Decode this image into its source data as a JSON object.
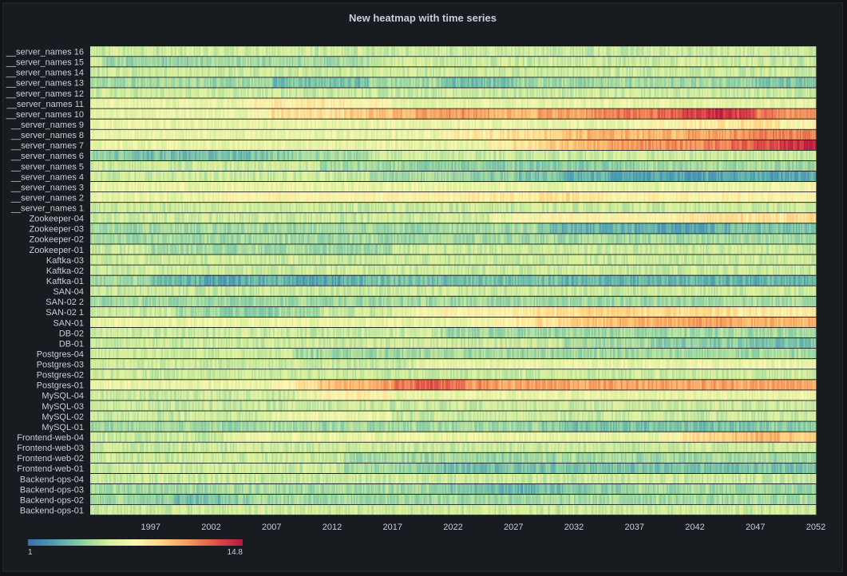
{
  "panel": {
    "title": "New heatmap with time series"
  },
  "chart_data": {
    "type": "heatmap",
    "title": "New heatmap with time series",
    "rows": [
      "__server_names 16",
      "__server_names 15",
      "__server_names 14",
      "__server_names 13",
      "__server_names 12",
      "__server_names 11",
      "__server_names 10",
      "__server_names 9",
      "__server_names 8",
      "__server_names 7",
      "__server_names 6",
      "__server_names 5",
      "__server_names 4",
      "__server_names 3",
      "__server_names 2",
      "__server_names 1",
      "Zookeeper-04",
      "Zookeeper-03",
      "Zookeeper-02",
      "Zookeeper-01",
      "Kaftka-03",
      "Kaftka-02",
      "Kaftka-01",
      "SAN-04",
      "SAN-02 2",
      "SAN-02 1",
      "SAN-01",
      "DB-02",
      "DB-01",
      "Postgres-04",
      "Postgres-03",
      "Postgres-02",
      "Postgres-01",
      "MySQL-04",
      "MySQL-03",
      "MySQL-02",
      "MySQL-01",
      "Frontend-web-04",
      "Frontend-web-03",
      "Frontend-web-02",
      "Frontend-web-01",
      "Backend-ops-04",
      "Backend-ops-03",
      "Backend-ops-02",
      "Backend-ops-01"
    ],
    "x_ticks": [
      "1997",
      "2002",
      "2007",
      "2012",
      "2017",
      "2022",
      "2027",
      "2032",
      "2037",
      "2042",
      "2047",
      "2052"
    ],
    "x_tick_values": [
      1997,
      2002,
      2007,
      2012,
      2017,
      2022,
      2027,
      2032,
      2037,
      2042,
      2047,
      2052
    ],
    "xlim": [
      1992,
      2052
    ],
    "column_years": [
      1992,
      1994,
      1996,
      1998,
      2000,
      2002,
      2004,
      2006,
      2008,
      2010,
      2012,
      2014,
      2016,
      2018,
      2020,
      2022,
      2024,
      2026,
      2028,
      2030,
      2032,
      2034,
      2036,
      2038,
      2040,
      2042,
      2044,
      2046,
      2048,
      2050,
      2052
    ],
    "color_scale": {
      "name": "Spectral",
      "min": 1,
      "max": 14.8,
      "min_label": "1",
      "max_label": "14.8",
      "stops": [
        "#3d6eae",
        "#4f9fb2",
        "#8ccfa4",
        "#d5ee9b",
        "#fbf7b3",
        "#fed283",
        "#f59a5c",
        "#de5147",
        "#b81840"
      ]
    },
    "values": [
      [
        6,
        6,
        6,
        6,
        6,
        6,
        6,
        6,
        6,
        6,
        6,
        6,
        6,
        6,
        6,
        6,
        6,
        6,
        6,
        6,
        6,
        6,
        6,
        6,
        6,
        6,
        6,
        6,
        6,
        6,
        6
      ],
      [
        6,
        5,
        4.5,
        4.5,
        4.5,
        5,
        5,
        5,
        5,
        5,
        5,
        5,
        6,
        6,
        6,
        6,
        6,
        6,
        6,
        6,
        6,
        6,
        6,
        6,
        6,
        6,
        6,
        6,
        6,
        6,
        6
      ],
      [
        6,
        6,
        6,
        6,
        6,
        6,
        6,
        6,
        6,
        6,
        6,
        6,
        6,
        6,
        6,
        6,
        6,
        6,
        6,
        6,
        6,
        6,
        6,
        6,
        6,
        6,
        6,
        6,
        6,
        6,
        6
      ],
      [
        5,
        5,
        5,
        5,
        5,
        5,
        5,
        5,
        4,
        4,
        4,
        4,
        5,
        5,
        5,
        4,
        4,
        4,
        5,
        5,
        5,
        5,
        5,
        5,
        5,
        5,
        5,
        5,
        4,
        4,
        4
      ],
      [
        6,
        6,
        6,
        6,
        6,
        6,
        6,
        6,
        6,
        6,
        6,
        6,
        6,
        6,
        6,
        6,
        6,
        6,
        6,
        6,
        6,
        6,
        6,
        6,
        6,
        6,
        6,
        6,
        6,
        6,
        6
      ],
      [
        7,
        7,
        7,
        7,
        7,
        7,
        7,
        8,
        8.5,
        8.5,
        8.5,
        8,
        8,
        7,
        7,
        7,
        7,
        7,
        7,
        7,
        7,
        7,
        7,
        7,
        7,
        7,
        7,
        7,
        7,
        7,
        7
      ],
      [
        7,
        7,
        7,
        7,
        7,
        7,
        7,
        8,
        9,
        9,
        9,
        9.5,
        10,
        10.5,
        11,
        11.5,
        11,
        10.5,
        10.5,
        11,
        11,
        11.5,
        12,
        12,
        12.5,
        13.5,
        14,
        13.5,
        12,
        11.5,
        11.5
      ],
      [
        7,
        7,
        7,
        7,
        7,
        7,
        7,
        7,
        7,
        7,
        7,
        7,
        7,
        7,
        7,
        7,
        7,
        7,
        7,
        7,
        7,
        7,
        7,
        8,
        8,
        8.5,
        8.5,
        9,
        9,
        8,
        8
      ],
      [
        7,
        7,
        7,
        7,
        7,
        7,
        7,
        7,
        7,
        7,
        7,
        7,
        7,
        7,
        7,
        8,
        8.5,
        9,
        9,
        9.5,
        10,
        10.5,
        10.5,
        10.5,
        10.5,
        11,
        11,
        11.5,
        12,
        12,
        12
      ],
      [
        7,
        7,
        7,
        7,
        7,
        7,
        7,
        7,
        7,
        7,
        7,
        7,
        7,
        7,
        7,
        7,
        7,
        8,
        9,
        9.5,
        10,
        10.5,
        11,
        11.5,
        11.5,
        11.5,
        12,
        12.5,
        13,
        14,
        14.5
      ],
      [
        5,
        4.5,
        4,
        4,
        4,
        4,
        4,
        4,
        4.5,
        5,
        5,
        5,
        6,
        6,
        6,
        6,
        6,
        6,
        6,
        6,
        6,
        6,
        6,
        6,
        6,
        6,
        6,
        6,
        6,
        6,
        6
      ],
      [
        6,
        6,
        6,
        6,
        6,
        6,
        6,
        6,
        6,
        6,
        5,
        5,
        5,
        5,
        4.5,
        4.5,
        4.5,
        4.5,
        4.5,
        4.5,
        4.5,
        4.5,
        4.5,
        5,
        5,
        5,
        5,
        5,
        5,
        5,
        5
      ],
      [
        6,
        6,
        6,
        6,
        6,
        6,
        6,
        6,
        6,
        6,
        6,
        6,
        5,
        5,
        5,
        5,
        4.5,
        4.5,
        4,
        4,
        3.5,
        3.5,
        3,
        3,
        3,
        2.8,
        3,
        3,
        3,
        3,
        3
      ],
      [
        7,
        7,
        7,
        7,
        7,
        7,
        7,
        7,
        7,
        7,
        7,
        7,
        7,
        7,
        7,
        7,
        7,
        7,
        7,
        7,
        7,
        7,
        7,
        7,
        7,
        7,
        7,
        7,
        7.5,
        7.5,
        8
      ],
      [
        7,
        7,
        7,
        7,
        7,
        7,
        8,
        8,
        8,
        8,
        8,
        8,
        8,
        8,
        8,
        8,
        8.5,
        8.5,
        8.5,
        9,
        9,
        8.5,
        8,
        8,
        8,
        8,
        8,
        8,
        8,
        8,
        8
      ],
      [
        6,
        6,
        6,
        6,
        6,
        6,
        6,
        6,
        6,
        6,
        6,
        6,
        6,
        6,
        6,
        6,
        6,
        6,
        6,
        6,
        6,
        6,
        6,
        6,
        6,
        6,
        6,
        6,
        6,
        6,
        6
      ],
      [
        6,
        6,
        6,
        6,
        6,
        6,
        6,
        6,
        6,
        6,
        6,
        6,
        6,
        6,
        6,
        6,
        6,
        7,
        7.5,
        8,
        8,
        8,
        8,
        8,
        8,
        8.5,
        9,
        9,
        9,
        9,
        9
      ],
      [
        5,
        5,
        5,
        5,
        5,
        5,
        5,
        5,
        5,
        5,
        5,
        5,
        5,
        5,
        5,
        5,
        5,
        5,
        5,
        4,
        3.5,
        3.5,
        3.5,
        3.2,
        3,
        3,
        3.5,
        4,
        4,
        4,
        4
      ],
      [
        5,
        5,
        5,
        5,
        5,
        5,
        5,
        5,
        5,
        5,
        5,
        5,
        5,
        5,
        5,
        5,
        5,
        5,
        5,
        5,
        5,
        5,
        5,
        5,
        5,
        5,
        5,
        5,
        5,
        5,
        5
      ],
      [
        6,
        6,
        6,
        5,
        5,
        5,
        5,
        5,
        5,
        5,
        5,
        5,
        5,
        6,
        6,
        6,
        6,
        6,
        6,
        6,
        6,
        6,
        6,
        6,
        6,
        6,
        6,
        6,
        6,
        6,
        6
      ],
      [
        6,
        6,
        6,
        6,
        6,
        6,
        6,
        6,
        6,
        6,
        6,
        6,
        6,
        6,
        6,
        6,
        6,
        6,
        6,
        6,
        6,
        6,
        6,
        6,
        6,
        6,
        6,
        6,
        6,
        6,
        6
      ],
      [
        6,
        6,
        6,
        6,
        6,
        6,
        6,
        6,
        6,
        6,
        6,
        6,
        6,
        6,
        6,
        6,
        6,
        6,
        6,
        6,
        6,
        6,
        6,
        6,
        6,
        6,
        6,
        6,
        6,
        6,
        6
      ],
      [
        5,
        5,
        5,
        4,
        3.5,
        3,
        3,
        3.5,
        3.5,
        3,
        3,
        3.5,
        4,
        4,
        4,
        4,
        4,
        4,
        4,
        4,
        3.5,
        3.5,
        3.5,
        3.5,
        3.5,
        3.5,
        3.5,
        3.5,
        3.5,
        3.5,
        3.5
      ],
      [
        6,
        6,
        6,
        6,
        6,
        6,
        6,
        6,
        6,
        6,
        6,
        6,
        6,
        6,
        6,
        6,
        6,
        6,
        6,
        6,
        6,
        6,
        6,
        6,
        6,
        6,
        6,
        6,
        6,
        6,
        6
      ],
      [
        5,
        5,
        5,
        5,
        5,
        5,
        5,
        5,
        5,
        5,
        5,
        5,
        5,
        5,
        5,
        5,
        5,
        5,
        5,
        5,
        5,
        5,
        5,
        5,
        5,
        5,
        5,
        5,
        5,
        5,
        5
      ],
      [
        6,
        6,
        6,
        6,
        5,
        5,
        4.5,
        4.5,
        5,
        5,
        6,
        6,
        6,
        7,
        7.5,
        8,
        8,
        8,
        8.5,
        9,
        9,
        9.5,
        9.5,
        9,
        9,
        9,
        9,
        8.5,
        8.5,
        8.5,
        8.5
      ],
      [
        7,
        7,
        7,
        7,
        7,
        7,
        7,
        7,
        7,
        7,
        7,
        7,
        7,
        7,
        7,
        7,
        7.5,
        8,
        8.5,
        9,
        9.5,
        10,
        10.5,
        10.5,
        10.5,
        11,
        11,
        10.5,
        10.5,
        10.5,
        10.5
      ],
      [
        6,
        6,
        6,
        6,
        6,
        6,
        6,
        6,
        6,
        6,
        6,
        6,
        6,
        6,
        6,
        5,
        5,
        5,
        5,
        5,
        5,
        5,
        5,
        5,
        5,
        5,
        5,
        5,
        5,
        5,
        5
      ],
      [
        6,
        6,
        6,
        6,
        6,
        6,
        6,
        6,
        6,
        6,
        6,
        6,
        6,
        6,
        6,
        6,
        6,
        6,
        6,
        6,
        5,
        5,
        5,
        5,
        4.5,
        4.5,
        4.5,
        4.5,
        4,
        4,
        4
      ],
      [
        6,
        6,
        6,
        6,
        6,
        6,
        6,
        6,
        6,
        5,
        5,
        5,
        5,
        5,
        5,
        5,
        5,
        5,
        5,
        5,
        5,
        5,
        5,
        5,
        5,
        5,
        5,
        5,
        5,
        5,
        5
      ],
      [
        6,
        6,
        6,
        6,
        6,
        6,
        6,
        6,
        6,
        6,
        6,
        6,
        6,
        6,
        7,
        7,
        7,
        7,
        7,
        7,
        7,
        7,
        7,
        7,
        7,
        7,
        7,
        7,
        7,
        7,
        7
      ],
      [
        6,
        6,
        6,
        6,
        6,
        6,
        6,
        6,
        6,
        6,
        6,
        6,
        6,
        6,
        6,
        6,
        6,
        6,
        6,
        6,
        6,
        6,
        6,
        6,
        6,
        6,
        6,
        6,
        6,
        6,
        6
      ],
      [
        7,
        7,
        7,
        7,
        7,
        7,
        7,
        7,
        8,
        9,
        10,
        10.5,
        11,
        12,
        13,
        12.5,
        11.5,
        11,
        11,
        11,
        11,
        11,
        11,
        11,
        11,
        11,
        11,
        11,
        11,
        11,
        11
      ],
      [
        6,
        6,
        6,
        6,
        6,
        6,
        6,
        6,
        6,
        7,
        8,
        8.5,
        8,
        7,
        7,
        7,
        7,
        7,
        7,
        7,
        7,
        7,
        7,
        7,
        7,
        7,
        7,
        7,
        7,
        7,
        7
      ],
      [
        6,
        6,
        6,
        6,
        6,
        6,
        6,
        6,
        6,
        6,
        6,
        6,
        6,
        6,
        6,
        6,
        6,
        6,
        6,
        6,
        6,
        6,
        6,
        6,
        6,
        6,
        6,
        6,
        6,
        6,
        6
      ],
      [
        6,
        6,
        6,
        6,
        6,
        6,
        6,
        6,
        7,
        7,
        7,
        7,
        7,
        6,
        6,
        6,
        6,
        6,
        6,
        6,
        6,
        6,
        6,
        6,
        6,
        6,
        6,
        6,
        6,
        6,
        6
      ],
      [
        5,
        5,
        5,
        5,
        5,
        5,
        5,
        5,
        5,
        5,
        5,
        5,
        5,
        5,
        5,
        5,
        5,
        5,
        5,
        4.5,
        4,
        4,
        4,
        4,
        4,
        4,
        4,
        4,
        4.5,
        4.5,
        4.5
      ],
      [
        6,
        6,
        6,
        6,
        6,
        6,
        7,
        7,
        7,
        7,
        7,
        7,
        7,
        7,
        7,
        7,
        7,
        7,
        7,
        7,
        7,
        7,
        7,
        7,
        8,
        9,
        9.5,
        10,
        10.5,
        10,
        9.5
      ],
      [
        6,
        6,
        6,
        6,
        6,
        6,
        6,
        6,
        6,
        6,
        6,
        6,
        6,
        6,
        6,
        6,
        6,
        6,
        6,
        6,
        6,
        6,
        6,
        6,
        6,
        6,
        6,
        6,
        6,
        6,
        6
      ],
      [
        6,
        6,
        6,
        6,
        6,
        6,
        6,
        6,
        6,
        6,
        6,
        5,
        5,
        5,
        5,
        5,
        5,
        5,
        5,
        5,
        5,
        5,
        5,
        5,
        5,
        5,
        5,
        5,
        5,
        5,
        5
      ],
      [
        6,
        6,
        6,
        6,
        6,
        6,
        6,
        6,
        6,
        6,
        6,
        5,
        5,
        4.5,
        4.5,
        4,
        4,
        4,
        4,
        4,
        4,
        4,
        4,
        4,
        4,
        4,
        4,
        4,
        4,
        4,
        4
      ],
      [
        6,
        6,
        6,
        6,
        6,
        6,
        6,
        6,
        6,
        6,
        6,
        6,
        6,
        6,
        6,
        6,
        6,
        6,
        6,
        6,
        6,
        6,
        6,
        6,
        6,
        6,
        6,
        6,
        6,
        6,
        6
      ],
      [
        5,
        5,
        5,
        5,
        5,
        5,
        5,
        5,
        5,
        5,
        5,
        5,
        5,
        5,
        5,
        4.5,
        4,
        3.5,
        3.5,
        4,
        4,
        4.5,
        4.5,
        5,
        5,
        5,
        5,
        5,
        5,
        5,
        5
      ],
      [
        5,
        5,
        5,
        4.5,
        4,
        4,
        4.5,
        5,
        5,
        5,
        5,
        5,
        5,
        5,
        5,
        5,
        5,
        5,
        5,
        5,
        5,
        5,
        5,
        5,
        5,
        5,
        5,
        5,
        5,
        5,
        5
      ],
      [
        6,
        6,
        6,
        6,
        6,
        6,
        6,
        6,
        6,
        6,
        6,
        6,
        6,
        6,
        6,
        6,
        6,
        6,
        6,
        6,
        6,
        6,
        6,
        6,
        6,
        6,
        6,
        6,
        6,
        6,
        6
      ]
    ]
  }
}
